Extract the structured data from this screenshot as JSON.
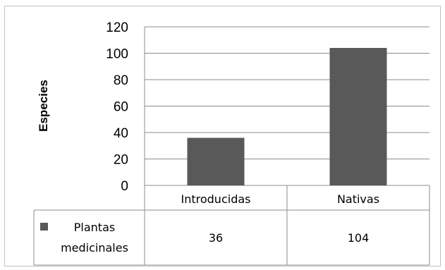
{
  "chart_data": {
    "type": "bar",
    "categories": [
      "Introducidas",
      "Nativas"
    ],
    "series": [
      {
        "name": "Plantas medicinales",
        "values": [
          36,
          104
        ],
        "color": "#595959"
      }
    ],
    "title": "",
    "xlabel": "",
    "ylabel": "Especies",
    "ylim": [
      0,
      120
    ],
    "yticks": [
      0,
      20,
      40,
      60,
      80,
      100,
      120
    ],
    "grid": true,
    "legend": "data-table",
    "data_table": {
      "legend_label_line1": "Plantas",
      "legend_label_line2": "medicinales",
      "values_text": [
        "36",
        "104"
      ]
    }
  }
}
